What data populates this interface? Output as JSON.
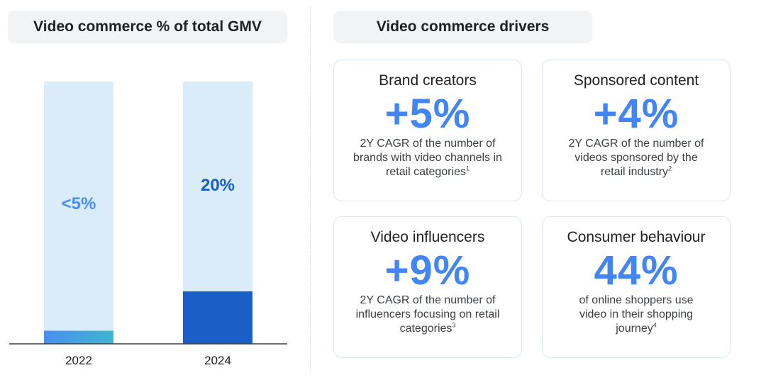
{
  "left_title": "Video commerce % of total GMV",
  "right_title": "Video commerce drivers",
  "chart_data": {
    "type": "bar",
    "title": "Video commerce % of total GMV",
    "categories": [
      "2022",
      "2024"
    ],
    "values": [
      5,
      20
    ],
    "value_labels": [
      "<5%",
      "20%"
    ],
    "ylim": [
      0,
      100
    ],
    "xlabel": "",
    "ylabel": "",
    "grid": false,
    "colors": {
      "background_bar": "#d9ecf8",
      "bar_2022": "#4a8ff0",
      "bar_2022_edge": "#3fb6d0",
      "bar_2024": "#1a5fc8",
      "label_2022": "#4a8ff0",
      "label_2024": "#1a5fc8",
      "axis": "#3c4043"
    }
  },
  "drivers": [
    {
      "id": "brand",
      "title": "Brand creators",
      "value": "+5%",
      "desc": "2Y CAGR of the number of brands with video channels in retail categories",
      "note": "1"
    },
    {
      "id": "sponsored",
      "title": "Sponsored content",
      "value": "+4%",
      "desc": "2Y CAGR of the number of videos sponsored by the retail industry",
      "note": "2"
    },
    {
      "id": "influencers",
      "title": "Video influencers",
      "value": "+9%",
      "desc": "2Y CAGR of the number of influencers focusing on retail categories",
      "note": "3"
    },
    {
      "id": "consumer",
      "title": "Consumer behaviour",
      "value": "44%",
      "desc": "of online shoppers use video in their shopping journey",
      "note": "4"
    }
  ]
}
